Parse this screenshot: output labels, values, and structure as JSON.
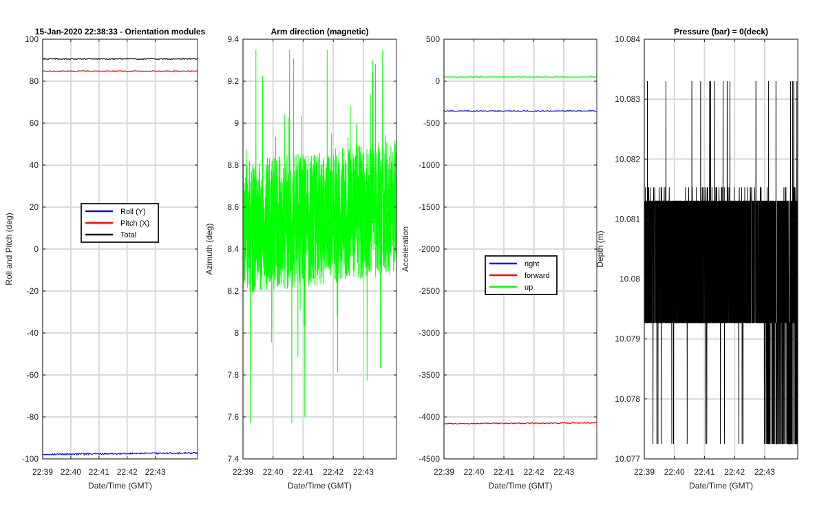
{
  "chart_data": [
    {
      "type": "line",
      "title": "15-Jan-2020 22:38:33 - Orientation modules",
      "xlabel": "Date/Time (GMT)",
      "ylabel": "Roll and Pitch (deg)",
      "ylim": [
        -100,
        100
      ],
      "yticks": [
        100,
        80,
        60,
        40,
        20,
        0,
        -20,
        -40,
        -60,
        -80,
        -100
      ],
      "xlim": [
        0,
        5.5
      ],
      "xticks": [
        {
          "v": 0,
          "label": "22:39"
        },
        {
          "v": 1,
          "label": "22:40"
        },
        {
          "v": 2,
          "label": "22:41"
        },
        {
          "v": 3,
          "label": "22:42"
        },
        {
          "v": 4,
          "label": "22:43"
        }
      ],
      "legend": {
        "position": "center",
        "entries": [
          "Roll (Y)",
          "Pitch (X)",
          "Total"
        ]
      },
      "series": [
        {
          "name": "Roll (Y)",
          "color": "#0000ff",
          "mode": "flat",
          "start": -97.8,
          "end": -97.2,
          "jitter": 0.35
        },
        {
          "name": "Pitch (X)",
          "color": "#ff0000",
          "mode": "flat",
          "start": 84.8,
          "end": 84.8,
          "jitter": 0.2
        },
        {
          "name": "Total",
          "color": "#000000",
          "mode": "flat",
          "start": 90.6,
          "end": 90.6,
          "jitter": 0.2
        }
      ]
    },
    {
      "type": "line",
      "title": "Arm direction (magnetic)",
      "xlabel": "Date/Time (GMT)",
      "ylabel": "Azimuth (deg)",
      "ylim": [
        7.4,
        9.4
      ],
      "yticks": [
        9.4,
        9.2,
        9,
        8.8,
        8.6,
        8.4,
        8.2,
        8,
        7.8,
        7.6,
        7.4
      ],
      "xlim": [
        0,
        5.1
      ],
      "xticks": [
        {
          "v": 0,
          "label": "22:39"
        },
        {
          "v": 1,
          "label": "22:40"
        },
        {
          "v": 2,
          "label": "22:41"
        },
        {
          "v": 3,
          "label": "22:42"
        },
        {
          "v": 4,
          "label": "22:43"
        }
      ],
      "legend": null,
      "series": [
        {
          "name": "Azimuth",
          "color": "#00ff00",
          "mode": "noise",
          "center_start": 8.5,
          "center_end": 8.6,
          "spread": 0.32,
          "min": 7.57,
          "max": 9.35,
          "seed": 7
        }
      ]
    },
    {
      "type": "line",
      "title": "",
      "xlabel": "Date/Time (GMT)",
      "ylabel": "Acceleration",
      "ylim": [
        -4500,
        500
      ],
      "yticks": [
        500,
        0,
        -500,
        -1000,
        -1500,
        -2000,
        -2500,
        -3000,
        -3500,
        -4000,
        -4500
      ],
      "xlim": [
        0,
        5.1
      ],
      "xticks": [
        {
          "v": 0,
          "label": "22:39"
        },
        {
          "v": 1,
          "label": "22:40"
        },
        {
          "v": 2,
          "label": "22:41"
        },
        {
          "v": 3,
          "label": "22:42"
        },
        {
          "v": 4,
          "label": "22:43"
        }
      ],
      "legend": {
        "position": "center-bottom",
        "entries": [
          "right",
          "forward",
          "up"
        ]
      },
      "series": [
        {
          "name": "right",
          "color": "#0000ff",
          "mode": "flat",
          "start": -355,
          "end": -355,
          "jitter": 6
        },
        {
          "name": "forward",
          "color": "#ff0000",
          "mode": "flat",
          "start": -4080,
          "end": -4070,
          "jitter": 6
        },
        {
          "name": "up",
          "color": "#00ff00",
          "mode": "flat",
          "start": 50,
          "end": 50,
          "jitter": 4
        }
      ]
    },
    {
      "type": "line",
      "title": "Pressure (bar) = 0(deck)",
      "xlabel": "Date/Time (GMT)",
      "ylabel": "Depth (m)",
      "ylim": [
        10.077,
        10.084
      ],
      "yticks": [
        10.084,
        10.083,
        10.082,
        10.081,
        10.08,
        10.079,
        10.078,
        10.077
      ],
      "xlim": [
        0,
        5.1
      ],
      "xticks": [
        {
          "v": 0,
          "label": "22:39"
        },
        {
          "v": 1,
          "label": "22:40"
        },
        {
          "v": 2,
          "label": "22:41"
        },
        {
          "v": 3,
          "label": "22:42"
        },
        {
          "v": 4,
          "label": "22:43"
        }
      ],
      "legend": null,
      "series": [
        {
          "name": "Depth",
          "color": "#000000",
          "mode": "quantized",
          "levels": [
            10.07927,
            10.0813,
            10.08153
          ],
          "low": 10.07725,
          "high": 10.0833,
          "seed": 11
        }
      ]
    }
  ]
}
